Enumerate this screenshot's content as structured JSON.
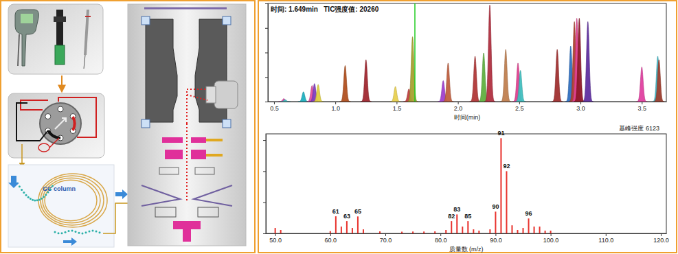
{
  "diagram": {
    "column_label": "GC column"
  },
  "chart_data": [
    {
      "type": "chromatogram",
      "title": "时间: 1.649min   TIC强度值: 20260",
      "xlabel": "时间(min)",
      "x": [
        0.58,
        0.59,
        0.74,
        0.81,
        0.83,
        0.86,
        1.08,
        1.25,
        1.49,
        1.6,
        1.63,
        1.88,
        1.92,
        2.14,
        2.21,
        2.26,
        2.39,
        2.49,
        2.51,
        2.81,
        2.92,
        2.95,
        2.97,
        2.99,
        3.06,
        3.5,
        3.63,
        3.64
      ],
      "values": [
        600,
        400,
        2000,
        3300,
        3700,
        3500,
        7400,
        8600,
        3100,
        2600,
        13300,
        4300,
        7900,
        9300,
        10000,
        19800,
        10700,
        7900,
        6400,
        10700,
        11400,
        16400,
        17100,
        17100,
        16400,
        7100,
        9300,
        8600
      ],
      "colors": [
        "#e040a0",
        "#40c0c0",
        "#20b0c0",
        "#e050a0",
        "#8040c0",
        "#e0d040",
        "#b05020",
        "#a02830",
        "#e8d050",
        "#c04040",
        "#a8a030",
        "#a040d0",
        "#c06040",
        "#b03838",
        "#60b040",
        "#b03040",
        "#c08050",
        "#e04090",
        "#40c0c0",
        "#a03030",
        "#3070c0",
        "#b04030",
        "#e04090",
        "#901828",
        "#6030a0",
        "#e040a0",
        "#40b8c8",
        "#a04030"
      ],
      "cursor": {
        "x": 1.649,
        "value": 20260,
        "color": "#22cc22"
      },
      "xlim": [
        0.45,
        3.7
      ],
      "xticks": [
        0.5,
        {
          "value": 1,
          "label": "1.0"
        },
        1.5,
        {
          "value": 2,
          "label": "2.0"
        },
        2.5,
        {
          "value": 3,
          "label": "3.0"
        },
        3.5
      ],
      "ylim": [
        0,
        20000
      ],
      "yticks": [
        0,
        5000,
        10000,
        15000,
        20000
      ],
      "tick_labels": "x"
    },
    {
      "type": "bar",
      "subtitle": "基峰强度 6123",
      "xlabel": "质量数 (m/z)",
      "x": [
        50,
        51,
        60,
        61,
        62,
        63,
        64,
        65,
        66,
        69,
        73,
        75,
        77,
        79,
        81,
        82,
        83,
        84,
        85,
        86,
        87,
        89,
        90,
        91,
        92,
        93,
        94,
        95,
        96,
        97,
        98,
        99,
        100
      ],
      "values": [
        350,
        220,
        150,
        1100,
        440,
        790,
        350,
        1090,
        260,
        130,
        110,
        120,
        120,
        130,
        220,
        790,
        1220,
        440,
        790,
        260,
        180,
        260,
        1400,
        6123,
        4000,
        520,
        220,
        350,
        960,
        440,
        440,
        180,
        180
      ],
      "color": "#e8322d",
      "annotations": [
        {
          "x": 61,
          "label": "61"
        },
        {
          "x": 63,
          "label": "63"
        },
        {
          "x": 65,
          "label": "65"
        },
        {
          "x": 82,
          "label": "82"
        },
        {
          "x": 83,
          "label": "83"
        },
        {
          "x": 85,
          "label": "85"
        },
        {
          "x": 90,
          "label": "90"
        },
        {
          "x": 91,
          "label": "91"
        },
        {
          "x": 92,
          "label": "92"
        },
        {
          "x": 96,
          "label": "96"
        }
      ],
      "xlim": [
        48.3,
        121
      ],
      "xticks": [
        {
          "value": 50,
          "label": "50.0"
        },
        {
          "value": 60,
          "label": "60.0"
        },
        {
          "value": 70,
          "label": "70.0"
        },
        {
          "value": 80,
          "label": "80.0"
        },
        {
          "value": 90,
          "label": "90.0"
        },
        {
          "value": 100,
          "label": "100.0"
        },
        {
          "value": 110,
          "label": "110.0"
        },
        {
          "value": 120,
          "label": "120.0"
        }
      ],
      "ylim": [
        0,
        6400
      ],
      "yticks": [
        0,
        2000,
        4000,
        6000
      ],
      "tick_labels": "x"
    }
  ]
}
